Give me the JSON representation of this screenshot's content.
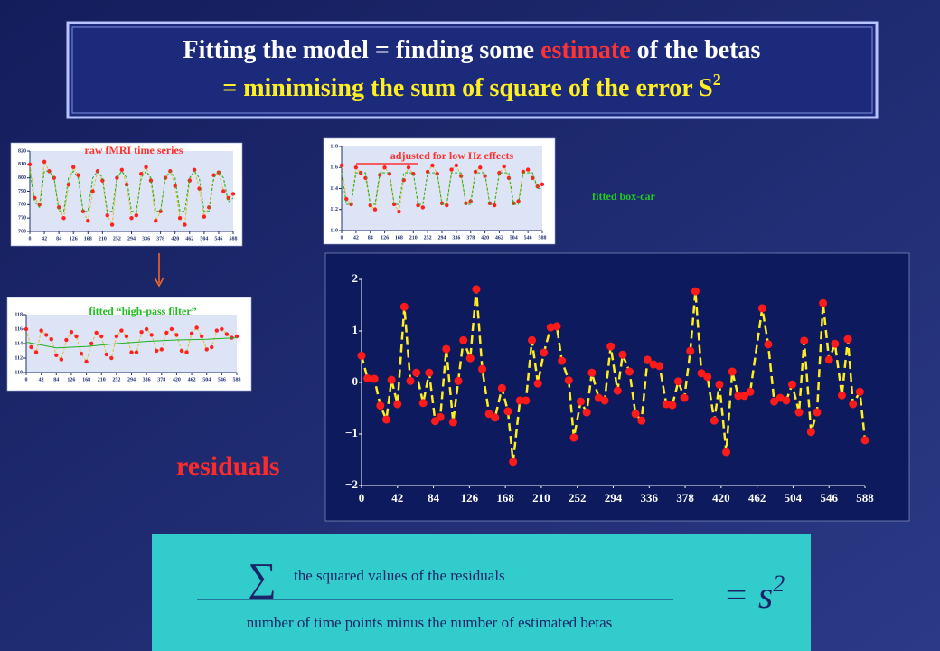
{
  "title": {
    "part1": "Fitting the model = finding some",
    "highlight": "estimate",
    "part2": "of the betas",
    "line2": "= minimising the sum of square of the error S",
    "line2_sup": "2"
  },
  "annotation": "fitted box-car",
  "residuals_label": "residuals",
  "formula": {
    "sigma": "∑",
    "numerator": "the squared values of the residuals",
    "denominator": "number of time points minus the number of estimated betas",
    "result": "= s",
    "result_sup": "2"
  },
  "chart_data": [
    {
      "type": "line",
      "title": "raw fMRI time series",
      "x": [
        0,
        14,
        28,
        42,
        56,
        70,
        84,
        98,
        112,
        126,
        140,
        154,
        168,
        182,
        196,
        210,
        224,
        238,
        252,
        266,
        280,
        294,
        308,
        322,
        336,
        350,
        364,
        378,
        392,
        406,
        420,
        434,
        448,
        462,
        476,
        490,
        504,
        518,
        532,
        546,
        560,
        574,
        588
      ],
      "series": [
        {
          "color": "#ff2020",
          "values": [
            810,
            785,
            780,
            812,
            805,
            800,
            778,
            770,
            795,
            808,
            802,
            775,
            768,
            790,
            805,
            798,
            772,
            765,
            800,
            806,
            795,
            770,
            772,
            803,
            808,
            798,
            768,
            775,
            800,
            805,
            794,
            770,
            765,
            798,
            806,
            792,
            771,
            778,
            802,
            804,
            790,
            785,
            788
          ]
        },
        {
          "color": "#20b020",
          "values": [
            805,
            782,
            778,
            805,
            805,
            800,
            775,
            775,
            800,
            805,
            800,
            775,
            775,
            800,
            805,
            800,
            775,
            775,
            800,
            805,
            800,
            775,
            775,
            800,
            805,
            800,
            775,
            775,
            800,
            805,
            800,
            775,
            775,
            800,
            805,
            800,
            775,
            775,
            800,
            805,
            800,
            782,
            785
          ]
        }
      ],
      "xlim": [
        0,
        588
      ],
      "xticks": [
        0,
        42,
        84,
        126,
        168,
        210,
        252,
        294,
        336,
        378,
        420,
        462,
        504,
        546,
        588
      ],
      "ylim": [
        760,
        820
      ],
      "yticks": [
        760,
        770,
        780,
        790,
        800,
        810,
        820
      ]
    },
    {
      "type": "line",
      "title": "adjusted for low Hz effects",
      "x": [
        0,
        14,
        28,
        42,
        56,
        70,
        84,
        98,
        112,
        126,
        140,
        154,
        168,
        182,
        196,
        210,
        224,
        238,
        252,
        266,
        280,
        294,
        308,
        322,
        336,
        350,
        364,
        378,
        392,
        406,
        420,
        434,
        448,
        462,
        476,
        490,
        504,
        518,
        532,
        546,
        560,
        574,
        588
      ],
      "series": [
        {
          "color": "#ff2020",
          "values": [
            116.2,
            113,
            112.5,
            116,
            115.5,
            115,
            112.4,
            112,
            115.3,
            116,
            115.4,
            112.5,
            111.8,
            114.8,
            116,
            115.4,
            112.4,
            112.2,
            115.6,
            116.2,
            115.4,
            112.6,
            112.4,
            115.8,
            116.2,
            115.2,
            112.6,
            112.8,
            115.6,
            116,
            115.2,
            112.6,
            112.4,
            115.5,
            116.1,
            115,
            112.6,
            112.8,
            115.6,
            115.8,
            115,
            114.2,
            114.4
          ]
        },
        {
          "color": "#20b020",
          "values": [
            115.5,
            112.5,
            112.5,
            115.5,
            115.5,
            115.5,
            112.5,
            112.5,
            115.5,
            115.5,
            115.5,
            112.5,
            112.5,
            115.5,
            115.5,
            115.5,
            112.5,
            112.5,
            115.5,
            115.5,
            115.5,
            112.5,
            112.5,
            115.5,
            115.5,
            115.5,
            112.5,
            112.5,
            115.5,
            115.5,
            115.5,
            112.5,
            112.5,
            115.5,
            115.5,
            115.5,
            112.5,
            112.5,
            115.5,
            115.5,
            115.5,
            114,
            114
          ]
        }
      ],
      "xlim": [
        0,
        588
      ],
      "xticks": [
        0,
        42,
        84,
        126,
        168,
        210,
        252,
        294,
        336,
        378,
        420,
        462,
        504,
        546,
        588
      ],
      "ylim": [
        110,
        118
      ],
      "yticks": [
        110,
        112,
        114,
        116,
        118
      ]
    },
    {
      "type": "line",
      "title": "fitted “high-pass filter”",
      "x": [
        0,
        14,
        28,
        42,
        56,
        70,
        84,
        98,
        112,
        126,
        140,
        154,
        168,
        182,
        196,
        210,
        224,
        238,
        252,
        266,
        280,
        294,
        308,
        322,
        336,
        350,
        364,
        378,
        392,
        406,
        420,
        434,
        448,
        462,
        476,
        490,
        504,
        518,
        532,
        546,
        560,
        574,
        588
      ],
      "series": [
        {
          "color": "#ff2020",
          "values": [
            116,
            113.5,
            112.8,
            115.8,
            115.2,
            114.6,
            112.4,
            111.8,
            114.5,
            115.6,
            115,
            112.6,
            111.5,
            114,
            115.5,
            115,
            112.5,
            112,
            115,
            115.8,
            115,
            112.8,
            112.8,
            115.6,
            116,
            115.2,
            113,
            113.2,
            115.5,
            116,
            115.2,
            113,
            112.8,
            115.4,
            116.2,
            115,
            113.2,
            113.5,
            115.8,
            116,
            115.3,
            114.8,
            115
          ]
        },
        {
          "color": "#20b020",
          "x": [
            0,
            84,
            168,
            252,
            336,
            420,
            504,
            588
          ],
          "values": [
            114.2,
            113.4,
            113.6,
            114,
            114.3,
            114.5,
            114.6,
            114.8
          ]
        }
      ],
      "xlim": [
        0,
        588
      ],
      "xticks": [
        0,
        42,
        84,
        126,
        168,
        210,
        252,
        294,
        336,
        378,
        420,
        462,
        504,
        546,
        588
      ],
      "ylim": [
        110,
        118
      ],
      "yticks": [
        110,
        112,
        114,
        116,
        118
      ]
    },
    {
      "type": "line",
      "x": [
        0,
        7,
        15,
        22,
        29,
        35,
        42,
        50,
        57,
        64,
        72,
        79,
        86,
        92,
        99,
        107,
        113,
        119,
        127,
        134,
        141,
        149,
        156,
        164,
        171,
        177,
        185,
        192,
        199,
        206,
        213,
        221,
        228,
        234,
        242,
        248,
        256,
        263,
        269,
        277,
        284,
        291,
        299,
        305,
        313,
        320,
        327,
        334,
        341,
        348,
        356,
        363,
        370,
        377,
        384,
        390,
        397,
        404,
        412,
        418,
        426,
        433,
        440,
        447,
        454,
        468,
        475,
        482,
        489,
        496,
        503,
        511,
        517,
        525,
        532,
        539,
        546,
        553,
        561,
        568,
        574,
        582,
        588
      ],
      "series": [
        {
          "color": "#ffee22",
          "marker_color": "#ff1a1a",
          "values": [
            0.52,
            0.08,
            0.07,
            -0.45,
            -0.72,
            0.05,
            -0.42,
            1.47,
            0.03,
            0.19,
            -0.4,
            0.19,
            -0.75,
            -0.67,
            0.65,
            -0.77,
            0.03,
            0.82,
            0.47,
            1.81,
            0.26,
            -0.61,
            -0.68,
            -0.11,
            -0.56,
            -1.54,
            -0.35,
            -0.35,
            0.82,
            -0.02,
            0.58,
            1.07,
            1.09,
            0.42,
            0.04,
            -1.07,
            -0.37,
            -0.58,
            0.19,
            -0.3,
            -0.35,
            0.7,
            -0.16,
            0.54,
            0.21,
            -0.61,
            -0.74,
            0.44,
            0.35,
            0.32,
            -0.42,
            -0.44,
            0.02,
            -0.3,
            0.61,
            1.77,
            0.18,
            0.11,
            -0.74,
            -0.04,
            -1.35,
            0.21,
            -0.26,
            -0.26,
            -0.18,
            1.44,
            0.74,
            -0.37,
            -0.3,
            -0.35,
            -0.04,
            -0.58,
            0.81,
            -0.96,
            -0.58,
            1.54,
            0.44,
            0.75,
            -0.25,
            0.84,
            -0.42,
            -0.18,
            -1.12
          ]
        }
      ],
      "xlim": [
        0,
        588
      ],
      "xticks": [
        0,
        42,
        84,
        126,
        168,
        210,
        252,
        294,
        336,
        378,
        420,
        462,
        504,
        546,
        588
      ],
      "ylim": [
        -2,
        2
      ],
      "yticks": [
        {
          "value": -2,
          "label": "−2"
        },
        {
          "value": -1,
          "label": "−1"
        },
        0,
        1,
        2
      ]
    }
  ]
}
